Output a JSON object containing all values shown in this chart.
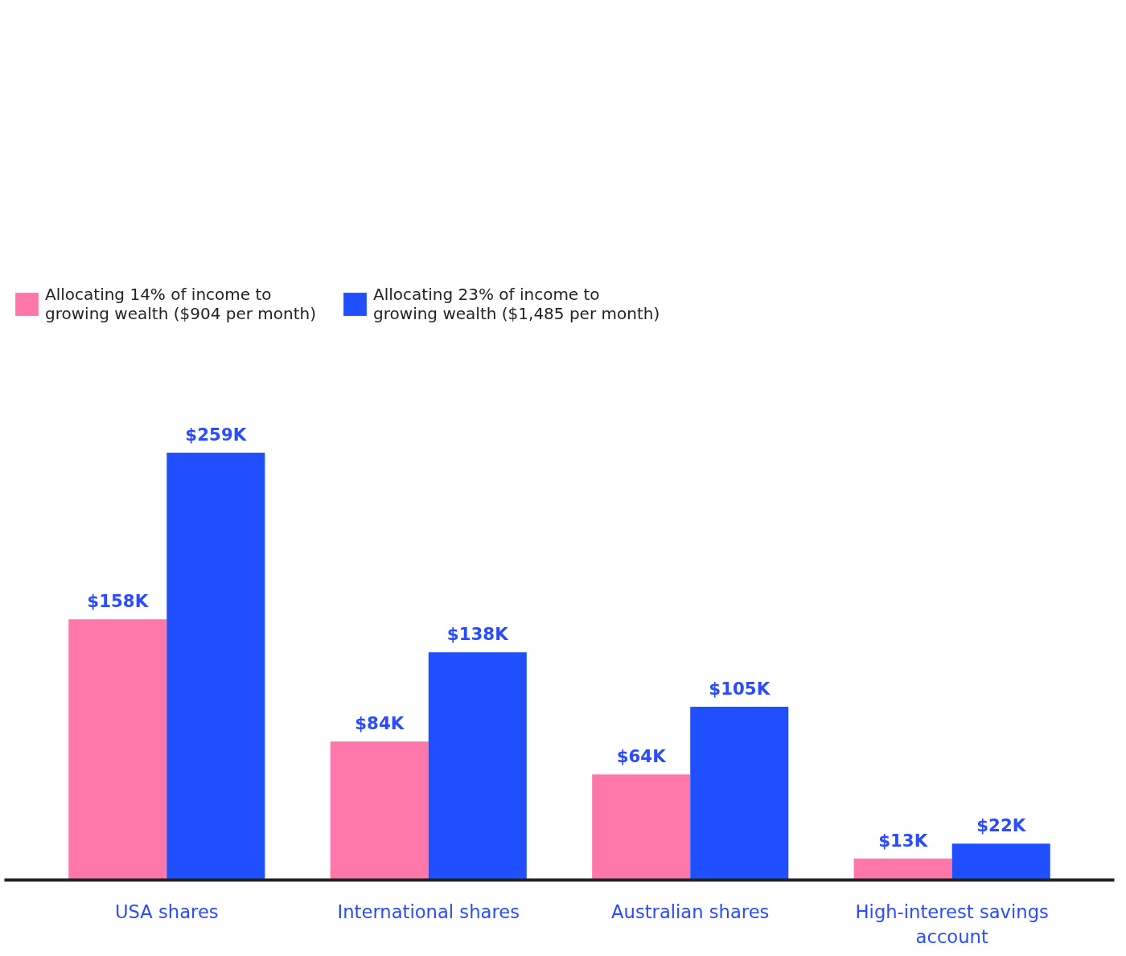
{
  "chart_data": {
    "type": "bar",
    "grid": false,
    "legend": "top left",
    "categories": [
      "USA shares",
      "International shares",
      "Australian shares",
      "High-interest savings account"
    ],
    "series": [
      {
        "name": "Allocating 14% of income to growing wealth ($904 per month)",
        "color": "#ff77a8",
        "values": [
          158,
          84,
          64,
          13
        ],
        "value_labels": [
          "$158K",
          "$84K",
          "$64K",
          "$13K"
        ]
      },
      {
        "name": "Allocating 23% of income to growing wealth ($1,485 per month)",
        "color": "#1f4fff",
        "values": [
          259,
          138,
          105,
          22
        ],
        "value_labels": [
          "$259K",
          "$138K",
          "$105K",
          "$22K"
        ]
      }
    ]
  }
}
